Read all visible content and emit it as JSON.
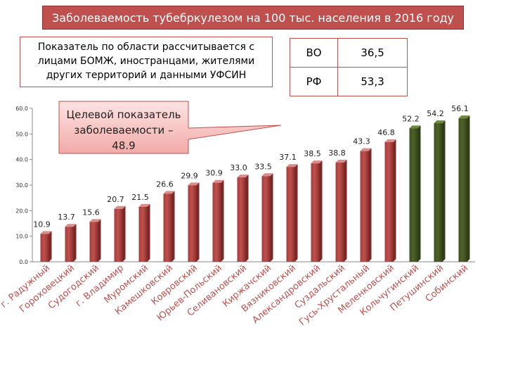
{
  "title": "Заболеваемость тубебркулезом на 100 тыс. населения в 2016 году",
  "note_lines": [
    "Показатель по области  рассчитывается с",
    "лицами БОМЖ, иностранцами, жителями",
    "других территорий и данными УФСИН"
  ],
  "comparison": [
    {
      "label": "ВО",
      "value": "36,5"
    },
    {
      "label": "РФ",
      "value": "53,3"
    }
  ],
  "callout_lines": [
    "Целевой показатель",
    "заболеваемости –",
    "48.9"
  ],
  "colors": {
    "red": "#c0504d",
    "red_dark": "#8b2f2c",
    "green": "#4f6228",
    "green_light": "#6e8a38"
  },
  "chart_data": {
    "type": "bar",
    "categories": [
      "г. Радужный",
      "Гороховецкий",
      "Судогодский",
      "г. Владимир",
      "Муромский",
      "Камешковский",
      "Ковровский",
      "Юрьев-Польский",
      "Селивановский",
      "Киржачский",
      "Вязниковский",
      "Александровский",
      "Суздальский",
      "Гусь-Хрустальный",
      "Меленковский",
      "Кольчугинский",
      "Петушинский",
      "Собинский"
    ],
    "values": [
      10.9,
      13.7,
      15.6,
      20.7,
      21.5,
      26.6,
      29.9,
      30.9,
      33.0,
      33.5,
      37.1,
      38.5,
      38.8,
      43.3,
      46.8,
      52.2,
      54.2,
      56.1
    ],
    "value_labels": [
      "10.9",
      "13.7",
      "15.6",
      "20.7",
      "21.5",
      "26.6",
      "29.9",
      "30.9",
      "33.0",
      "33.5",
      "37.1",
      "38.5",
      "38.8",
      "43.3",
      "46.8",
      "52.2",
      "54.2",
      "56.1"
    ],
    "bar_colors": [
      "red",
      "red",
      "red",
      "red",
      "red",
      "red",
      "red",
      "red",
      "red",
      "red",
      "red",
      "red",
      "red",
      "red",
      "red",
      "green",
      "green",
      "green"
    ],
    "ylim": [
      0,
      60
    ],
    "yticks": [
      "0.0",
      "10.0",
      "20.0",
      "30.0",
      "40.0",
      "50.0",
      "60.0"
    ],
    "grid": false,
    "legend": "none"
  }
}
